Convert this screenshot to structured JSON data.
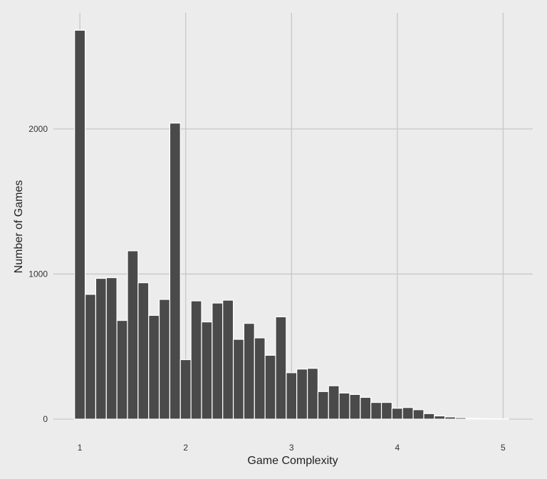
{
  "chart_data": {
    "type": "bar",
    "title": "",
    "xlabel": "Game Complexity",
    "ylabel": "Number of Games",
    "xlim": [
      0.75,
      5.28
    ],
    "ylim": [
      0,
      2800
    ],
    "x_ticks": [
      1,
      2,
      3,
      4,
      5
    ],
    "y_ticks": [
      0,
      1000,
      2000
    ],
    "grid": true,
    "legend": "none",
    "bar_color": "#4a4a4a",
    "bar_edge_color": "#ffffff",
    "background_color": "#ececec",
    "grid_color": "#c8c8c8",
    "bin_width": 0.1,
    "bin_starts": [
      0.95,
      1.05,
      1.15,
      1.25,
      1.35,
      1.45,
      1.55,
      1.65,
      1.75,
      1.85,
      1.95,
      2.05,
      2.15,
      2.25,
      2.35,
      2.45,
      2.55,
      2.65,
      2.75,
      2.85,
      2.95,
      3.05,
      3.15,
      3.25,
      3.35,
      3.45,
      3.55,
      3.65,
      3.75,
      3.85,
      3.95,
      4.05,
      4.15,
      4.25,
      4.35,
      4.45,
      4.55,
      4.65,
      4.75,
      4.85,
      4.95
    ],
    "values": [
      2680,
      860,
      970,
      975,
      680,
      1160,
      940,
      715,
      825,
      2040,
      410,
      815,
      670,
      800,
      820,
      550,
      660,
      560,
      440,
      705,
      320,
      345,
      350,
      190,
      230,
      180,
      170,
      150,
      115,
      115,
      75,
      80,
      65,
      38,
      22,
      15,
      10,
      6,
      4,
      3,
      2
    ]
  }
}
